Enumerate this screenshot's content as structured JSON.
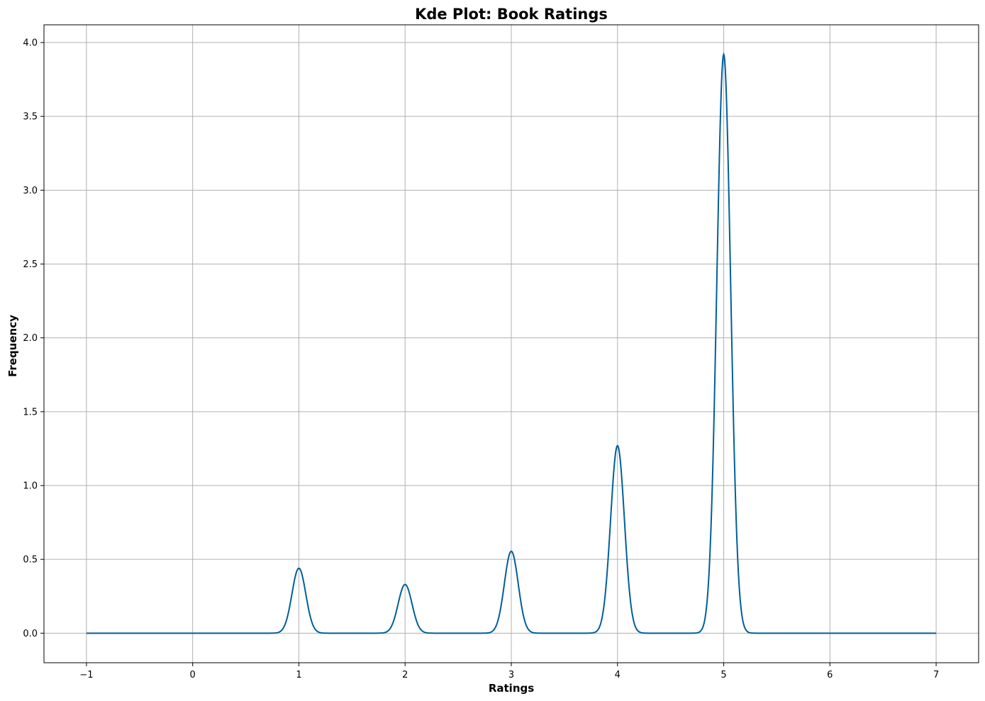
{
  "chart_data": {
    "type": "line",
    "title": "Kde Plot: Book Ratings",
    "xlabel": "Ratings",
    "ylabel": "Frequency",
    "xlim": [
      -1.4,
      7.4
    ],
    "ylim": [
      -0.2,
      4.12
    ],
    "xticks": [
      -1,
      0,
      1,
      2,
      3,
      4,
      5,
      6,
      7
    ],
    "xtick_labels": [
      "−1",
      "0",
      "1",
      "2",
      "3",
      "4",
      "5",
      "6",
      "7"
    ],
    "yticks": [
      0.0,
      0.5,
      1.0,
      1.5,
      2.0,
      2.5,
      3.0,
      3.5,
      4.0
    ],
    "ytick_labels": [
      "0.0",
      "0.5",
      "1.0",
      "1.5",
      "2.0",
      "2.5",
      "3.0",
      "3.5",
      "4.0"
    ],
    "grid": true,
    "x_range": [
      -1,
      7
    ],
    "series": [
      {
        "color": "#005f99",
        "peaks": [
          {
            "x": 1,
            "y": 0.44
          },
          {
            "x": 2,
            "y": 0.33
          },
          {
            "x": 3,
            "y": 0.555
          },
          {
            "x": 4,
            "y": 1.27
          },
          {
            "x": 5,
            "y": 3.92
          }
        ]
      }
    ]
  }
}
